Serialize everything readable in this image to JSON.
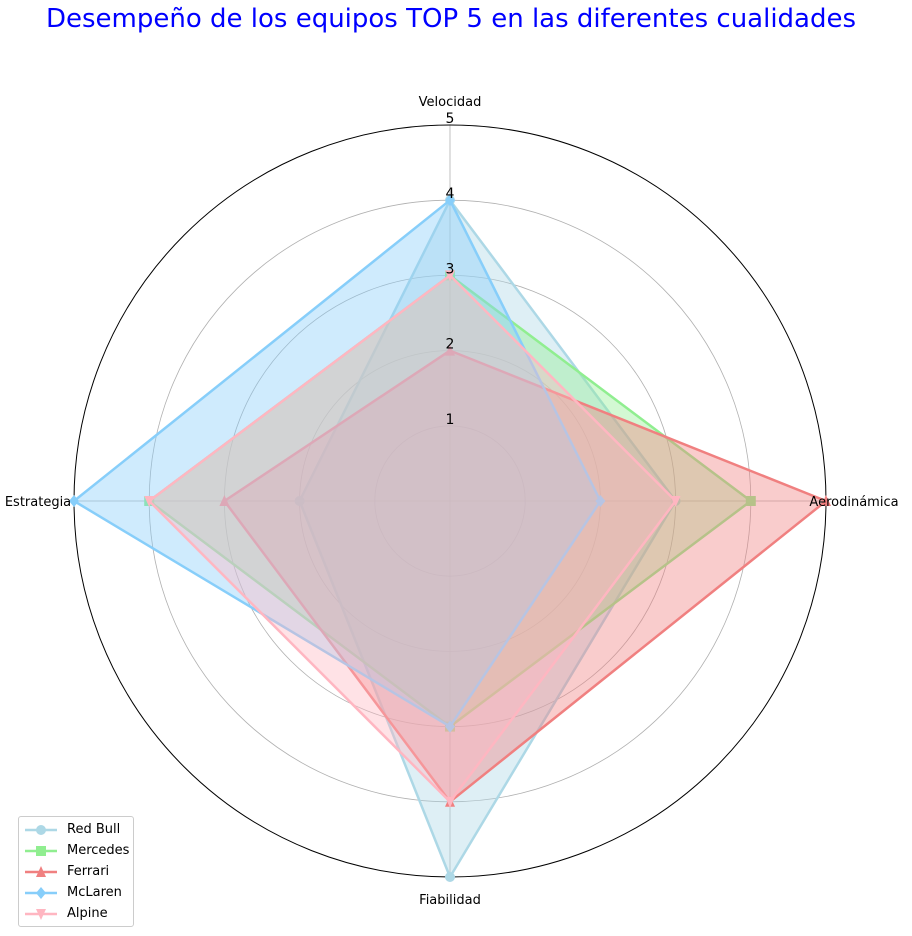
{
  "chart_data": {
    "type": "radar",
    "title": "Desempeño de los equipos TOP 5 en las diferentes cualidades",
    "categories": [
      "Velocidad",
      "Aerodinámica",
      "Fiabilidad",
      "Estrategia"
    ],
    "rlim": [
      0,
      5
    ],
    "rticks": [
      1,
      2,
      3,
      4,
      5
    ],
    "grid": true,
    "legend_position": "lower-left",
    "series": [
      {
        "name": "Red Bull",
        "values": [
          4,
          3,
          5,
          2
        ],
        "color": "#add8e6",
        "marker": "circle"
      },
      {
        "name": "Mercedes",
        "values": [
          3,
          4,
          3,
          4
        ],
        "color": "#90ee90",
        "marker": "square"
      },
      {
        "name": "Ferrari",
        "values": [
          2,
          5,
          4,
          3
        ],
        "color": "#f08080",
        "marker": "triangle-up"
      },
      {
        "name": "McLaren",
        "values": [
          4,
          2,
          3,
          5
        ],
        "color": "#87cefa",
        "marker": "diamond"
      },
      {
        "name": "Alpine",
        "values": [
          3,
          3,
          4,
          4
        ],
        "color": "#ffb6c1",
        "marker": "triangle-down"
      }
    ]
  }
}
